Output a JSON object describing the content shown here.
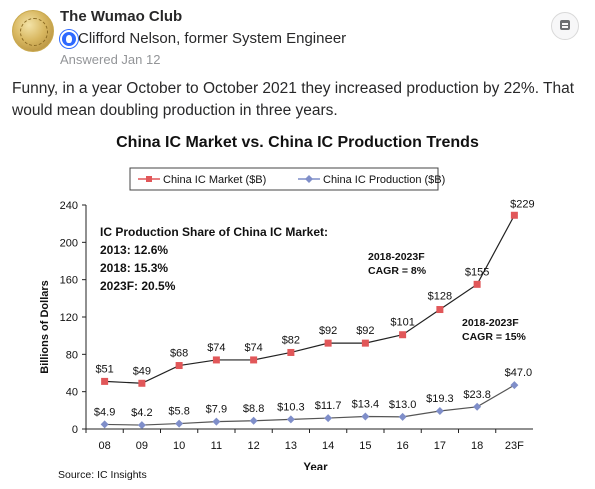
{
  "post": {
    "space_name": "The Wumao Club",
    "author": "Clifford Nelson, former System Engineer",
    "answered": "Answered Jan 12",
    "body": "Funny, in a year October to October 2021 they increased production by 22%. That would mean doubling production in three years.",
    "menu_icon": "menu-icon"
  },
  "chart_data": {
    "type": "line",
    "title": "China IC Market vs. China IC Production Trends",
    "xlabel": "Year",
    "ylabel": "Billions of Dollars",
    "source": "Source: IC Insights",
    "categories": [
      "08",
      "09",
      "10",
      "11",
      "12",
      "13",
      "14",
      "15",
      "16",
      "17",
      "18",
      "23F"
    ],
    "ylim": [
      0,
      240
    ],
    "yticks": [
      0,
      40,
      80,
      120,
      160,
      200,
      240
    ],
    "grid": false,
    "legend_position": "top",
    "series": [
      {
        "name": "China IC Market ($B)",
        "color": "#e15759",
        "marker": "square",
        "values": [
          51,
          49,
          68,
          74,
          74,
          82,
          92,
          92,
          101,
          128,
          155,
          229
        ],
        "labels": [
          "$51",
          "$49",
          "$68",
          "$74",
          "$74",
          "$82",
          "$92",
          "$92",
          "$101",
          "$128",
          "$155",
          "$229"
        ]
      },
      {
        "name": "China IC Production ($B)",
        "color": "#7f8ec9",
        "marker": "diamond",
        "values": [
          4.9,
          4.2,
          5.8,
          7.9,
          8.8,
          10.3,
          11.7,
          13.4,
          13.0,
          19.3,
          23.8,
          47.0
        ],
        "labels": [
          "$4.9",
          "$4.2",
          "$5.8",
          "$7.9",
          "$8.8",
          "$10.3",
          "$11.7",
          "$13.4",
          "$13.0",
          "$19.3",
          "$23.8",
          "$47.0"
        ]
      }
    ],
    "annotations": {
      "share_title": "IC Production Share of China IC Market:",
      "share_lines": [
        "2013: 12.6%",
        "2018: 15.3%",
        "2023F: 20.5%"
      ],
      "cagr_market": [
        "2018-2023F",
        "CAGR = 8%"
      ],
      "cagr_production": [
        "2018-2023F",
        "CAGR = 15%"
      ]
    }
  }
}
